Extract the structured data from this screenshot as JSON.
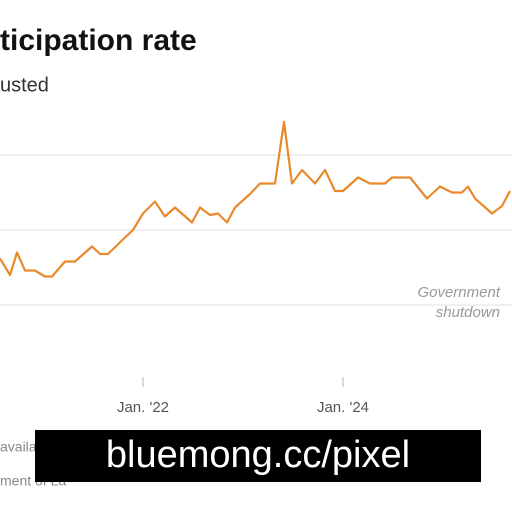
{
  "chart_data": {
    "type": "line",
    "title": "ticipation rate",
    "subtitle": "usted",
    "series": [
      {
        "name": "Participation rate",
        "color": "#e8892b",
        "x": [
          2020.57,
          2020.67,
          2020.74,
          2020.82,
          2020.92,
          2021.02,
          2021.09,
          2021.22,
          2021.32,
          2021.49,
          2021.57,
          2021.65,
          2021.82,
          2021.9,
          2022.0,
          2022.12,
          2022.22,
          2022.32,
          2022.49,
          2022.57,
          2022.67,
          2022.75,
          2022.84,
          2022.92,
          2023.07,
          2023.17,
          2023.32,
          2023.41,
          2023.49,
          2023.59,
          2023.72,
          2023.82,
          2023.92,
          2024.0,
          2024.15,
          2024.27,
          2024.42,
          2024.49,
          2024.67,
          2024.84,
          2024.97,
          2025.09,
          2025.19,
          2025.25,
          2025.32,
          2025.49,
          2025.59,
          2025.67
        ],
        "values": [
          62.31,
          62.2,
          62.35,
          62.23,
          62.23,
          62.19,
          62.19,
          62.29,
          62.29,
          62.39,
          62.34,
          62.34,
          62.45,
          62.5,
          62.61,
          62.69,
          62.59,
          62.65,
          62.55,
          62.65,
          62.6,
          62.61,
          62.55,
          62.65,
          62.74,
          62.81,
          62.81,
          63.22,
          62.81,
          62.9,
          62.81,
          62.9,
          62.76,
          62.76,
          62.85,
          62.81,
          62.81,
          62.85,
          62.85,
          62.71,
          62.79,
          62.75,
          62.75,
          62.79,
          62.71,
          62.61,
          62.66,
          62.76
        ]
      }
    ],
    "xlim": [
      2020.57,
      2025.69
    ],
    "xticks": [
      {
        "value": 2022,
        "label": "Jan. '22"
      },
      {
        "value": 2024,
        "label": "Jan. '24"
      }
    ],
    "ylim": [
      61.5,
      63.3
    ],
    "yticks": [
      62,
      62.5,
      63
    ],
    "grid": true,
    "annotation": [
      "Government",
      "shutdown"
    ],
    "footnotes": [
      "availa",
      "ment of La"
    ],
    "watermark": "bluemong.cc/pixel"
  }
}
